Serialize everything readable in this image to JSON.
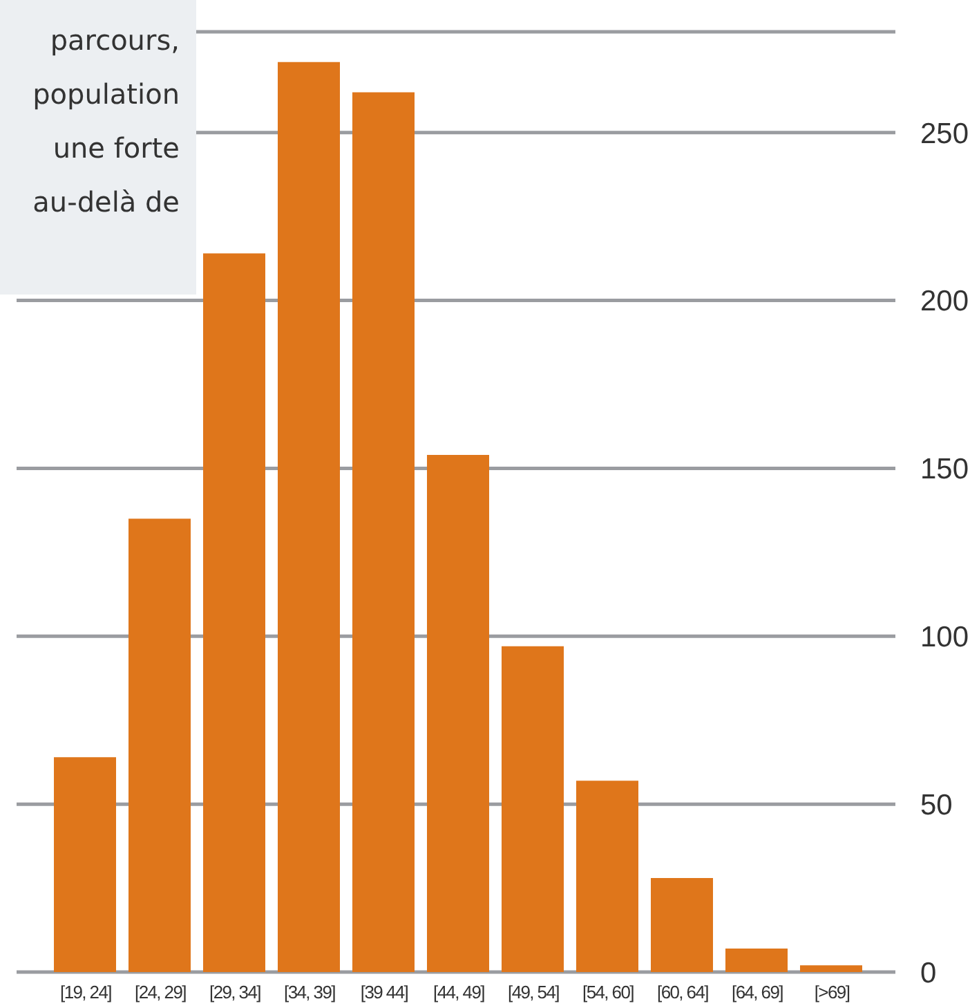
{
  "chart_data": {
    "type": "bar",
    "categories": [
      "[19, 24]",
      "[24, 29]",
      "[29, 34]",
      "[34, 39]",
      "[39 44]",
      "[44, 49]",
      "[49, 54]",
      "[54, 60]",
      "[60, 64]",
      "[64, 69]",
      "[>69]"
    ],
    "values": [
      64,
      135,
      214,
      271,
      262,
      154,
      97,
      57,
      28,
      7,
      2
    ],
    "color": "#df761b",
    "ylim": [
      0,
      280
    ],
    "yticks": [
      0,
      50,
      100,
      150,
      200,
      250
    ],
    "grid": "y",
    "annotations": [
      "parcours,\npopulation\nune forte\nau-delà de"
    ]
  }
}
